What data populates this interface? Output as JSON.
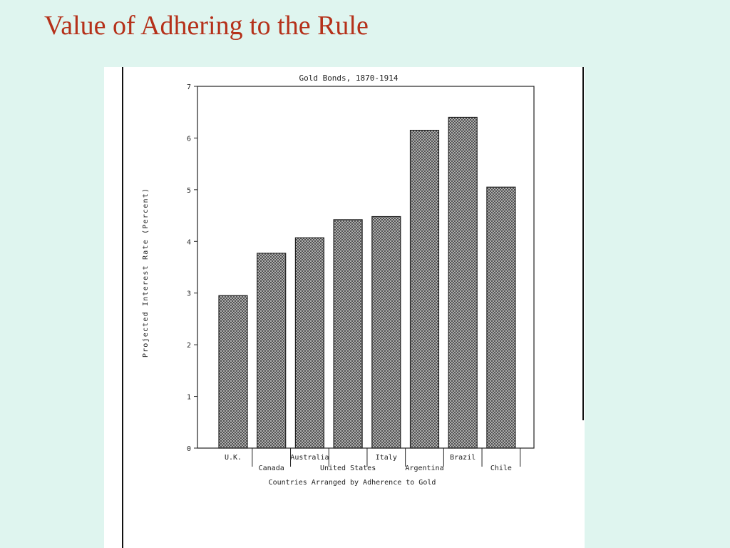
{
  "slide": {
    "title": "Value of Adhering to the Rule"
  },
  "chart_data": {
    "type": "bar",
    "title": "Gold Bonds, 1870-1914",
    "xlabel": "Countries Arranged by Adherence to Gold",
    "ylabel": "Projected Interest Rate (Percent)",
    "categories": [
      "U.K.",
      "Canada",
      "Australia",
      "United States",
      "Italy",
      "Argentina",
      "Brazil",
      "Chile"
    ],
    "values": [
      2.95,
      3.77,
      4.07,
      4.42,
      4.48,
      6.15,
      6.4,
      5.05
    ],
    "ylim": [
      0,
      7
    ],
    "yticks": [
      "0",
      "1",
      "2",
      "3",
      "4",
      "5",
      "6",
      "7"
    ],
    "grid": false,
    "bar_fill": "hatched gray"
  }
}
